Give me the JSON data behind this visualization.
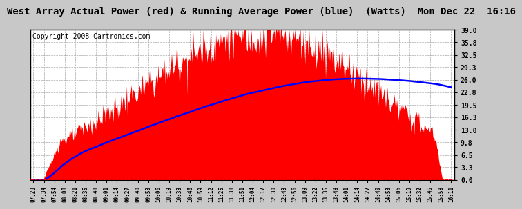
{
  "title": "West Array Actual Power (red) & Running Average Power (blue)  (Watts)  Mon Dec 22  16:16",
  "copyright": "Copyright 2008 Cartronics.com",
  "y_ticks": [
    0.0,
    3.3,
    6.5,
    9.8,
    13.0,
    16.3,
    19.5,
    22.8,
    26.0,
    29.3,
    32.5,
    35.8,
    39.0
  ],
  "ylim": [
    0.0,
    39.0
  ],
  "x_labels": [
    "07:23",
    "07:34",
    "07:54",
    "08:08",
    "08:21",
    "08:35",
    "08:48",
    "09:01",
    "09:14",
    "09:27",
    "09:40",
    "09:53",
    "10:06",
    "10:19",
    "10:33",
    "10:46",
    "10:59",
    "11:12",
    "11:25",
    "11:38",
    "11:51",
    "12:04",
    "12:17",
    "12:30",
    "12:43",
    "12:56",
    "13:09",
    "13:22",
    "13:35",
    "13:48",
    "14:01",
    "14:14",
    "14:27",
    "14:40",
    "14:53",
    "15:06",
    "15:19",
    "15:32",
    "15:45",
    "15:58",
    "16:11"
  ],
  "title_color": "#000000",
  "title_fontsize": 10,
  "copyright_fontsize": 7,
  "bar_color": "#ff0000",
  "line_color": "#0000ff",
  "background_color": "#c8c8c8",
  "plot_bg_color": "#ffffff",
  "grid_color": "#aaaaaa",
  "border_color": "#000000"
}
